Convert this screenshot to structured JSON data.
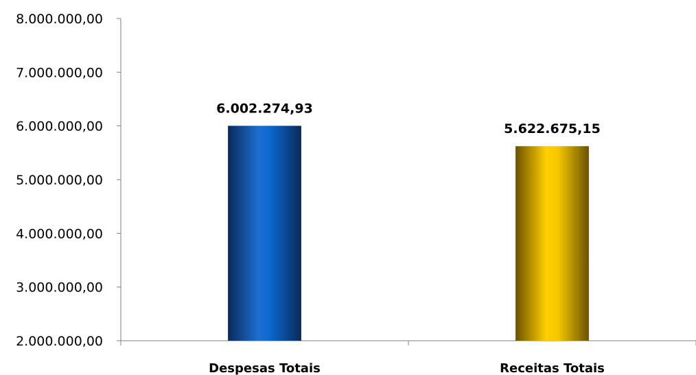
{
  "chart_data": {
    "type": "bar",
    "categories": [
      "Despesas Totais",
      "Receitas Totais"
    ],
    "values": [
      6002274.93,
      5622675.15
    ],
    "value_labels": [
      "6.002.274,93",
      "5.622.675,15"
    ],
    "ylim": [
      2000000,
      8000000
    ],
    "yticks": [
      2000000,
      3000000,
      4000000,
      5000000,
      6000000,
      7000000,
      8000000
    ],
    "ytick_labels": [
      "2.000.000,00",
      "3.000.000,00",
      "4.000.000,00",
      "5.000.000,00",
      "6.000.000,00",
      "7.000.000,00",
      "8.000.000,00"
    ],
    "title": "",
    "xlabel": "",
    "ylabel": "",
    "grid": false,
    "legend": "none",
    "bar_colors": [
      {
        "dark": "#0a2a5a",
        "mid": "#1e6fd0",
        "light": "#0a66cc"
      },
      {
        "dark": "#6b5200",
        "mid": "#ffd000",
        "light": "#f5c800"
      }
    ]
  }
}
